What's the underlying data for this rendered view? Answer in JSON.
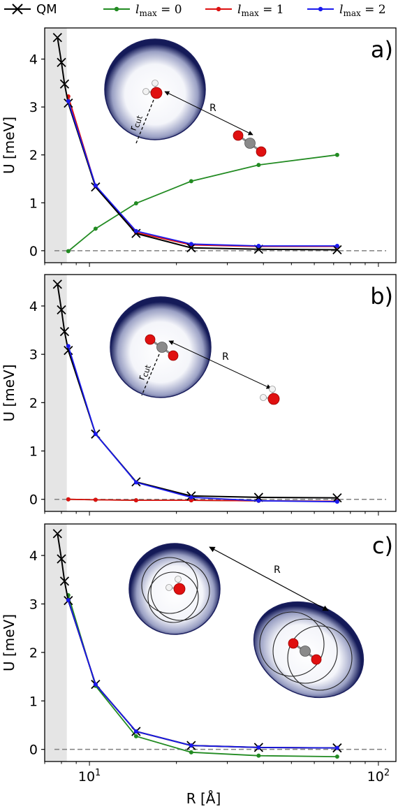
{
  "legend": {
    "entries": [
      {
        "label": "QM",
        "color": "#000000",
        "marker": "x"
      },
      {
        "label": "l",
        "sub": "max",
        "eq": " = 0",
        "color": "#228b22",
        "marker": "dot"
      },
      {
        "label": "l",
        "sub": "max",
        "eq": " = 1",
        "color": "#dd1111",
        "marker": "dot"
      },
      {
        "label": "l",
        "sub": "max",
        "eq": " = 2",
        "color": "#1a1aee",
        "marker": "dot"
      }
    ]
  },
  "colors": {
    "qm": "#000000",
    "lmax0": "#228b22",
    "lmax1": "#dd1111",
    "lmax2": "#1a1aee",
    "shade": "#e5e5e5",
    "zero_line": "#808080",
    "sphere_edge": "#1b1f5e"
  },
  "chart_data": [
    {
      "type": "line",
      "panel_label": "a)",
      "ylabel": "U [meV]",
      "xlabel": "",
      "xscale": "log",
      "xlim": [
        7.0,
        115
      ],
      "ylim": [
        -0.25,
        4.65
      ],
      "yticks": [
        0,
        1,
        2,
        3,
        4
      ],
      "xticks": [],
      "shaded_region": [
        7.0,
        8.35
      ],
      "zero_line": true,
      "inset": {
        "type": "sphere-single",
        "rcut_label": "r",
        "rcut_sub": "cut",
        "r_label": "R",
        "center_molecule": "water",
        "outer_molecule": "co2"
      },
      "series": [
        {
          "name": "QM",
          "key": "qm",
          "x": [
            7.75,
            8.0,
            8.2,
            8.45,
            10.5,
            14.5,
            22.5,
            38.5,
            72
          ],
          "y": [
            4.45,
            3.93,
            3.48,
            3.08,
            1.33,
            0.36,
            0.06,
            0.03,
            0.02
          ]
        },
        {
          "name": "lmax = 0",
          "key": "lmax0",
          "x": [
            8.45,
            10.5,
            14.5,
            22.5,
            38.5,
            72
          ],
          "y": [
            -0.01,
            0.46,
            0.99,
            1.45,
            1.79,
            2.0
          ]
        },
        {
          "name": "lmax = 1",
          "key": "lmax1",
          "x": [
            8.45,
            10.5,
            14.5,
            22.5,
            38.5,
            72
          ],
          "y": [
            3.22,
            1.35,
            0.38,
            0.12,
            0.09,
            0.09
          ]
        },
        {
          "name": "lmax = 2",
          "key": "lmax2",
          "x": [
            8.45,
            10.5,
            14.5,
            22.5,
            38.5,
            72
          ],
          "y": [
            3.12,
            1.36,
            0.41,
            0.14,
            0.1,
            0.1
          ]
        }
      ]
    },
    {
      "type": "line",
      "panel_label": "b)",
      "ylabel": "U [meV]",
      "xlabel": "",
      "xscale": "log",
      "xlim": [
        7.0,
        115
      ],
      "ylim": [
        -0.25,
        4.65
      ],
      "yticks": [
        0,
        1,
        2,
        3,
        4
      ],
      "xticks": [],
      "shaded_region": [
        7.0,
        8.35
      ],
      "zero_line": true,
      "inset": {
        "type": "sphere-single",
        "rcut_label": "r",
        "rcut_sub": "cut",
        "r_label": "R",
        "center_molecule": "co2",
        "outer_molecule": "water"
      },
      "series": [
        {
          "name": "QM",
          "key": "qm",
          "x": [
            7.75,
            8.0,
            8.2,
            8.45,
            10.5,
            14.5,
            22.5,
            38.5,
            72
          ],
          "y": [
            4.45,
            3.92,
            3.47,
            3.08,
            1.35,
            0.36,
            0.07,
            0.04,
            0.03
          ]
        },
        {
          "name": "lmax = 0",
          "key": "lmax0",
          "x": [
            8.45,
            10.5,
            14.5,
            22.5,
            38.5,
            72
          ],
          "y": [
            0.0,
            -0.01,
            -0.02,
            -0.02,
            -0.03,
            -0.04
          ]
        },
        {
          "name": "lmax = 1",
          "key": "lmax1",
          "x": [
            8.45,
            10.5,
            14.5,
            22.5,
            38.5,
            72
          ],
          "y": [
            0.0,
            -0.01,
            -0.02,
            -0.02,
            -0.03,
            -0.04
          ]
        },
        {
          "name": "lmax = 2",
          "key": "lmax2",
          "x": [
            8.45,
            10.5,
            14.5,
            22.5,
            38.5,
            72
          ],
          "y": [
            3.17,
            1.35,
            0.35,
            0.04,
            -0.03,
            -0.05
          ]
        }
      ]
    },
    {
      "type": "line",
      "panel_label": "c)",
      "ylabel": "U [meV]",
      "xlabel": "R [Å]",
      "xscale": "log",
      "xlim": [
        7.0,
        115
      ],
      "ylim": [
        -0.25,
        4.65
      ],
      "yticks": [
        0,
        1,
        2,
        3,
        4
      ],
      "xticks": [
        10,
        100
      ],
      "shaded_region": [
        7.0,
        8.35
      ],
      "zero_line": true,
      "inset": {
        "type": "sphere-pair",
        "r_label": "R"
      },
      "series": [
        {
          "name": "QM",
          "key": "qm",
          "x": [
            7.75,
            8.0,
            8.2,
            8.45,
            10.5,
            14.5,
            22.5,
            38.5,
            72
          ],
          "y": [
            4.45,
            3.93,
            3.47,
            3.07,
            1.34,
            0.37,
            0.08,
            0.04,
            0.03
          ]
        },
        {
          "name": "lmax = 0",
          "key": "lmax0",
          "x": [
            8.45,
            10.5,
            14.5,
            22.5,
            38.5,
            72
          ],
          "y": [
            3.18,
            1.31,
            0.27,
            -0.06,
            -0.13,
            -0.15
          ]
        },
        {
          "name": "lmax = 1",
          "key": "lmax1",
          "x": [
            8.45,
            10.5,
            14.5,
            22.5,
            38.5,
            72
          ],
          "y": [
            3.08,
            1.34,
            0.37,
            0.08,
            0.04,
            0.03
          ]
        },
        {
          "name": "lmax = 2",
          "key": "lmax2",
          "x": [
            8.45,
            10.5,
            14.5,
            22.5,
            38.5,
            72
          ],
          "y": [
            3.08,
            1.34,
            0.37,
            0.08,
            0.04,
            0.03
          ]
        }
      ]
    }
  ]
}
